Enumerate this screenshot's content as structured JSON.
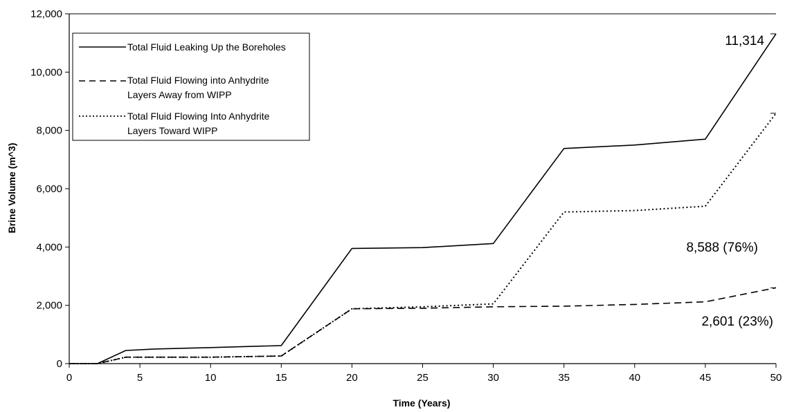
{
  "chart_data": {
    "type": "line",
    "title": "",
    "xlabel": "Time (Years)",
    "ylabel": "Brine Volume (m^3)",
    "xlim": [
      0,
      50
    ],
    "ylim": [
      0,
      12000
    ],
    "x_ticks": [
      0,
      5,
      10,
      15,
      20,
      25,
      30,
      35,
      40,
      45,
      50
    ],
    "y_ticks": [
      0,
      2000,
      4000,
      6000,
      8000,
      10000,
      12000
    ],
    "x_tick_labels": [
      "0",
      "5",
      "10",
      "15",
      "20",
      "25",
      "30",
      "35",
      "40",
      "45",
      "50"
    ],
    "y_tick_labels": [
      "0",
      "2,000",
      "4,000",
      "6,000",
      "8,000",
      "10,000",
      "12,000"
    ],
    "grid": false,
    "legend_position": "top-left",
    "series": [
      {
        "name": "Total Fluid Leaking Up the Boreholes",
        "legend_lines": [
          "Total Fluid Leaking Up the Boreholes"
        ],
        "style": "solid",
        "x": [
          0,
          2,
          4,
          6,
          10,
          15,
          20,
          25,
          30,
          35,
          40,
          45,
          50
        ],
        "y": [
          0,
          0,
          450,
          500,
          550,
          620,
          3950,
          3980,
          4120,
          7380,
          7500,
          7700,
          11314
        ]
      },
      {
        "name": "Total Fluid Flowing into Anhydrite Layers Away from WIPP",
        "legend_lines": [
          "Total Fluid Flowing into Anhydrite",
          "Layers Away from WIPP"
        ],
        "style": "dashed",
        "x": [
          0,
          2,
          4,
          10,
          15,
          20,
          25,
          30,
          35,
          40,
          45,
          50
        ],
        "y": [
          0,
          0,
          220,
          220,
          260,
          1880,
          1900,
          1950,
          1970,
          2030,
          2120,
          2601
        ]
      },
      {
        "name": "Total Fluid Flowing Into Anhydrite Layers Toward WIPP",
        "legend_lines": [
          "Total Fluid Flowing Into Anhydrite",
          "Layers Toward WIPP"
        ],
        "style": "dotted",
        "x": [
          0,
          2,
          4,
          10,
          15,
          20,
          25,
          30,
          35,
          40,
          45,
          50
        ],
        "y": [
          0,
          0,
          220,
          220,
          260,
          1880,
          1950,
          2050,
          5200,
          5250,
          5400,
          8588
        ]
      }
    ],
    "annotations": [
      {
        "text": "11,314",
        "series": 0
      },
      {
        "text": "8,588 (76%)",
        "series": 2
      },
      {
        "text": "2,601 (23%)",
        "series": 1
      }
    ]
  }
}
